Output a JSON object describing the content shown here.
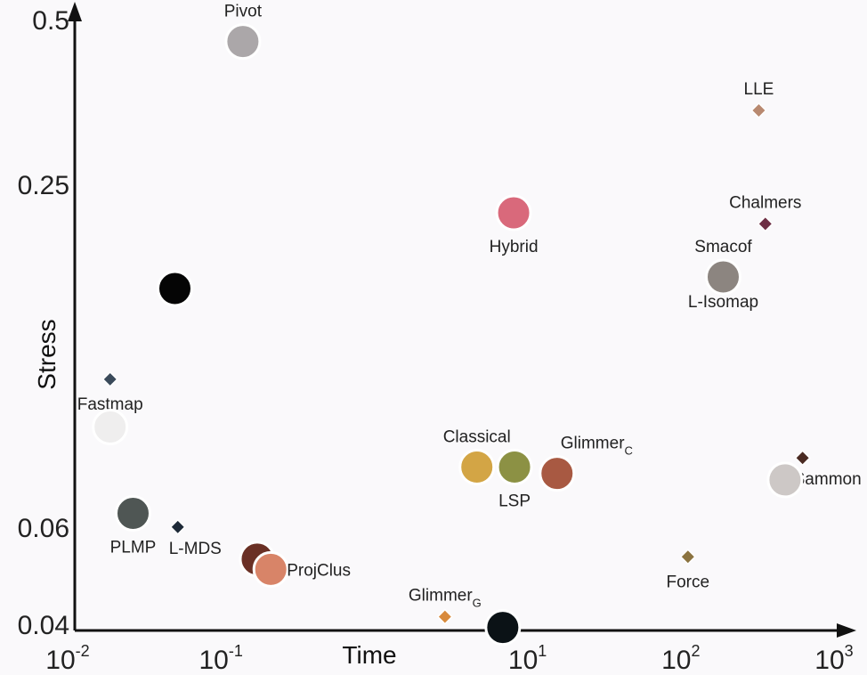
{
  "chart_data": {
    "type": "scatter",
    "title": "",
    "xlabel": "Time",
    "ylabel": "Stress",
    "xscale": "log",
    "yscale": "log",
    "xlim": [
      0.01,
      1000
    ],
    "ylim": [
      0.039,
      0.5
    ],
    "x_ticks": [
      {
        "value": 0.01,
        "base": "10",
        "exp": "-2"
      },
      {
        "value": 0.1,
        "base": "10",
        "exp": "-1"
      },
      {
        "value": 10,
        "base": "10",
        "exp": "1"
      },
      {
        "value": 100,
        "base": "10",
        "exp": "2"
      },
      {
        "value": 1000,
        "base": "10",
        "exp": "3"
      }
    ],
    "y_ticks": [
      {
        "value": 0.04,
        "label": "0.04"
      },
      {
        "value": 0.06,
        "label": "0.06"
      },
      {
        "value": 0.25,
        "label": "0.25"
      },
      {
        "value": 0.5,
        "label": "0.5"
      }
    ],
    "grid": false,
    "points": [
      {
        "label": "Pivot",
        "sub": "",
        "x": 0.125,
        "y": 0.453,
        "marker": "circle",
        "color": "#aba7a9",
        "label_pos": "above"
      },
      {
        "label": "LLE",
        "sub": "",
        "x": 290,
        "y": 0.34,
        "marker": "diamond",
        "color": "#b88970",
        "label_pos": "above"
      },
      {
        "label": "Chalmers",
        "sub": "",
        "x": 320,
        "y": 0.212,
        "marker": "diamond",
        "color": "#6e2f45",
        "label_pos": "above"
      },
      {
        "label": "Hybrid",
        "sub": "",
        "x": 7.3,
        "y": 0.222,
        "marker": "circle",
        "color": "#d9697b",
        "label_pos": "below"
      },
      {
        "label": "Smacof",
        "sub": "",
        "x": 170,
        "y": 0.17,
        "marker": "circle",
        "color": "#8c8580",
        "label_pos": "above"
      },
      {
        "label": "L-Isomap",
        "sub": "",
        "x": 170,
        "y": 0.17,
        "marker": "none",
        "color": "#8c8580",
        "label_pos": "below"
      },
      {
        "label": "",
        "sub": "",
        "x": 0.045,
        "y": 0.162,
        "marker": "circle",
        "color": "#050505",
        "label_pos": "none"
      },
      {
        "label": "Fastmap",
        "sub": "",
        "x": 0.017,
        "y": 0.111,
        "marker": "diamond",
        "color": "#3a4a5a",
        "label_pos": "below"
      },
      {
        "label": "",
        "sub": "",
        "x": 0.017,
        "y": 0.091,
        "marker": "circle",
        "color": "#efeeee",
        "label_pos": "none"
      },
      {
        "label": "Classical",
        "sub": "",
        "x": 4.2,
        "y": 0.077,
        "marker": "circle",
        "color": "#d3a545",
        "label_pos": "above"
      },
      {
        "label": "LSP",
        "sub": "",
        "x": 7.4,
        "y": 0.077,
        "marker": "circle",
        "color": "#8c9144",
        "label_pos": "below"
      },
      {
        "label": "Glimmer",
        "sub": "C",
        "x": 14,
        "y": 0.075,
        "marker": "circle",
        "color": "#a85942",
        "label_pos": "above-right"
      },
      {
        "label": "Sammon",
        "sub": "",
        "x": 560,
        "y": 0.08,
        "marker": "diamond",
        "color": "#4a2a22",
        "label_pos": "below-right"
      },
      {
        "label": "",
        "sub": "",
        "x": 430,
        "y": 0.073,
        "marker": "circle",
        "color": "#cdc8c6",
        "label_pos": "none"
      },
      {
        "label": "PLMP",
        "sub": "",
        "x": 0.024,
        "y": 0.0635,
        "marker": "circle",
        "color": "#4f5654",
        "label_pos": "below"
      },
      {
        "label": "L-MDS",
        "sub": "",
        "x": 0.047,
        "y": 0.06,
        "marker": "diamond",
        "color": "#1e2a38",
        "label_pos": "below-right"
      },
      {
        "label": "Force",
        "sub": "",
        "x": 100,
        "y": 0.053,
        "marker": "diamond",
        "color": "#8b7340",
        "label_pos": "below"
      },
      {
        "label": "",
        "sub": "",
        "x": 0.155,
        "y": 0.0525,
        "marker": "circle",
        "color": "#6a3025",
        "label_pos": "none"
      },
      {
        "label": "ProjClus",
        "sub": "",
        "x": 0.19,
        "y": 0.0503,
        "marker": "circle",
        "color": "#d88468",
        "label_pos": "right"
      },
      {
        "label": "Glimmer",
        "sub": "G",
        "x": 2.6,
        "y": 0.0413,
        "marker": "diamond",
        "color": "#d88a3c",
        "label_pos": "above"
      },
      {
        "label": "",
        "sub": "",
        "x": 6.2,
        "y": 0.0395,
        "marker": "circle",
        "color": "#0b1216",
        "label_pos": "none"
      }
    ]
  }
}
